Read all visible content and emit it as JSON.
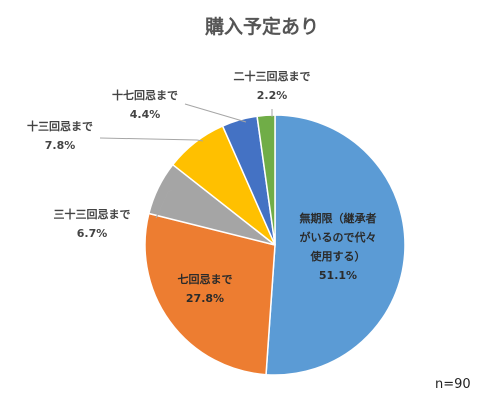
{
  "chart_data": {
    "type": "pie",
    "title": "購入予定あり",
    "note": "n=90",
    "slices": [
      {
        "name": "無期限（継承者がいるので代々使用する）",
        "value": 51.1,
        "value_label": "51.1%",
        "color": "#5b9bd5",
        "label_lines": [
          "無期限（継承者",
          "がいるので代々",
          "使用する）"
        ]
      },
      {
        "name": "七回忌まで",
        "value": 27.8,
        "value_label": "27.8%",
        "color": "#ed7d31",
        "label_lines": [
          "七回忌まで"
        ]
      },
      {
        "name": "三十三回忌まで",
        "value": 6.7,
        "value_label": "6.7%",
        "color": "#a5a5a5",
        "label_lines": [
          "三十三回忌まで"
        ]
      },
      {
        "name": "十三回忌まで",
        "value": 7.8,
        "value_label": "7.8%",
        "color": "#ffc000",
        "label_lines": [
          "十三回忌まで"
        ]
      },
      {
        "name": "十七回忌まで",
        "value": 4.4,
        "value_label": "4.4%",
        "color": "#4472c4",
        "label_lines": [
          "十七回忌まで"
        ]
      },
      {
        "name": "二十三回忌まで",
        "value": 2.2,
        "value_label": "2.2%",
        "color": "#70ad47",
        "label_lines": [
          "二十三回忌まで"
        ]
      }
    ]
  }
}
